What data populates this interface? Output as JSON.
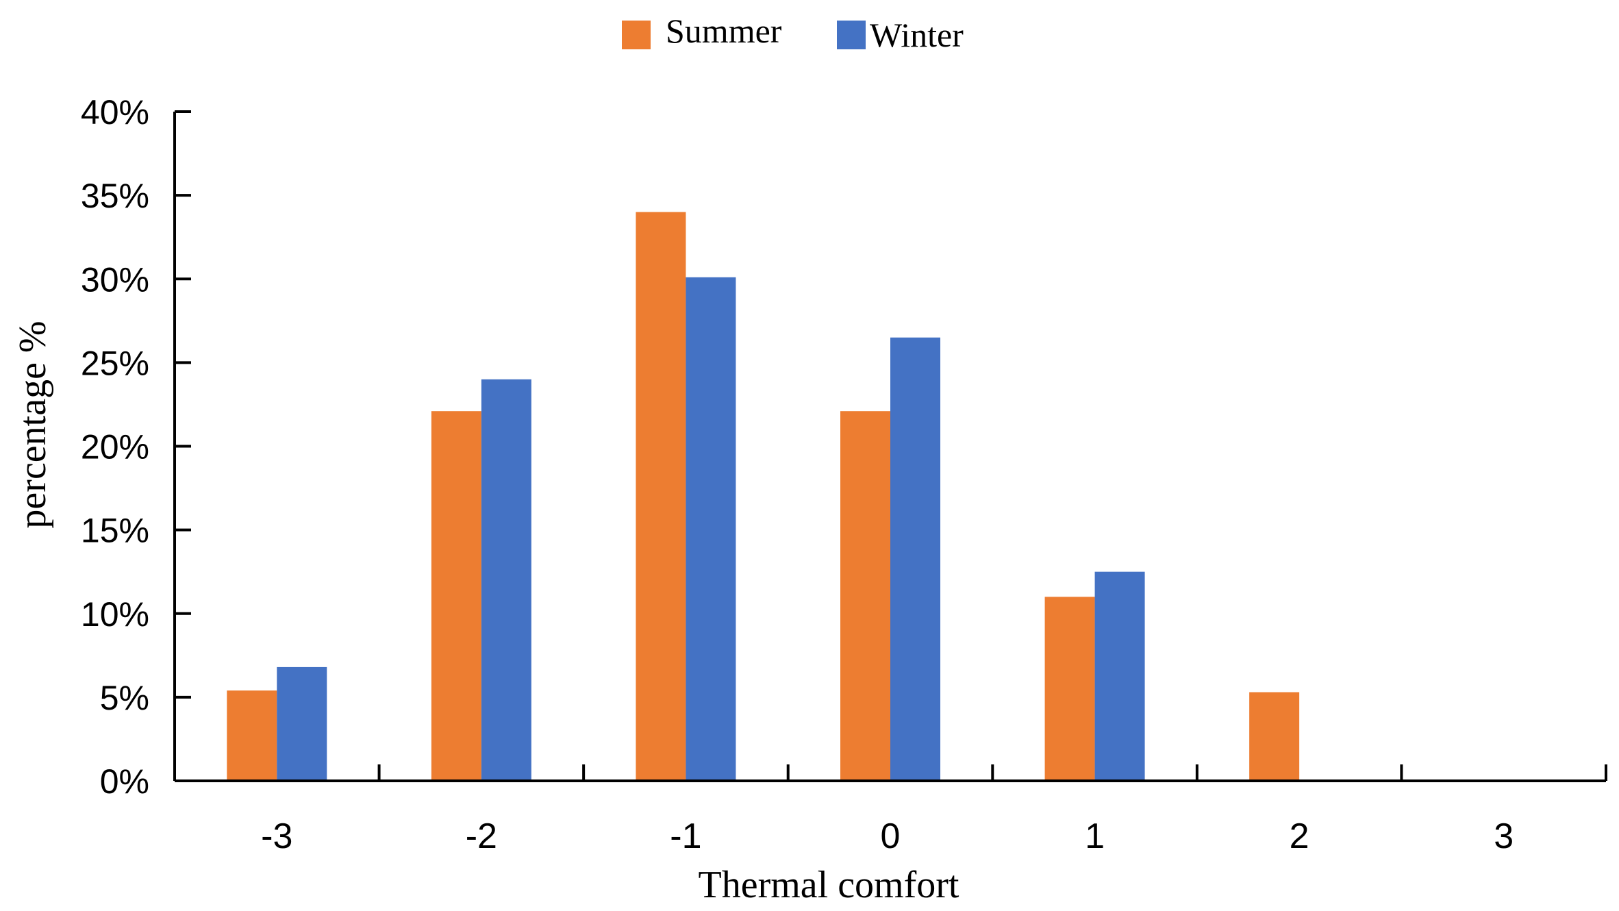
{
  "chart_data": {
    "type": "bar",
    "title": "",
    "xlabel": "Thermal comfort",
    "ylabel": "percentage %",
    "categories": [
      "-3",
      "-2",
      "-1",
      "0",
      "1",
      "2",
      "3"
    ],
    "series": [
      {
        "name": "Summer",
        "color": "#ED7D31",
        "values": [
          5.4,
          22.1,
          34.0,
          22.1,
          11.0,
          5.3,
          0
        ]
      },
      {
        "name": "Winter",
        "color": "#4472C4",
        "values": [
          6.8,
          24.0,
          30.1,
          26.5,
          12.5,
          0,
          0
        ]
      }
    ],
    "ylim": [
      0,
      40
    ],
    "yticks": [
      "0%",
      "5%",
      "10%",
      "15%",
      "20%",
      "25%",
      "30%",
      "35%",
      "40%"
    ],
    "ytick_values": [
      0,
      5,
      10,
      15,
      20,
      25,
      30,
      35,
      40
    ],
    "legend_position": "top-center",
    "grid": false
  }
}
